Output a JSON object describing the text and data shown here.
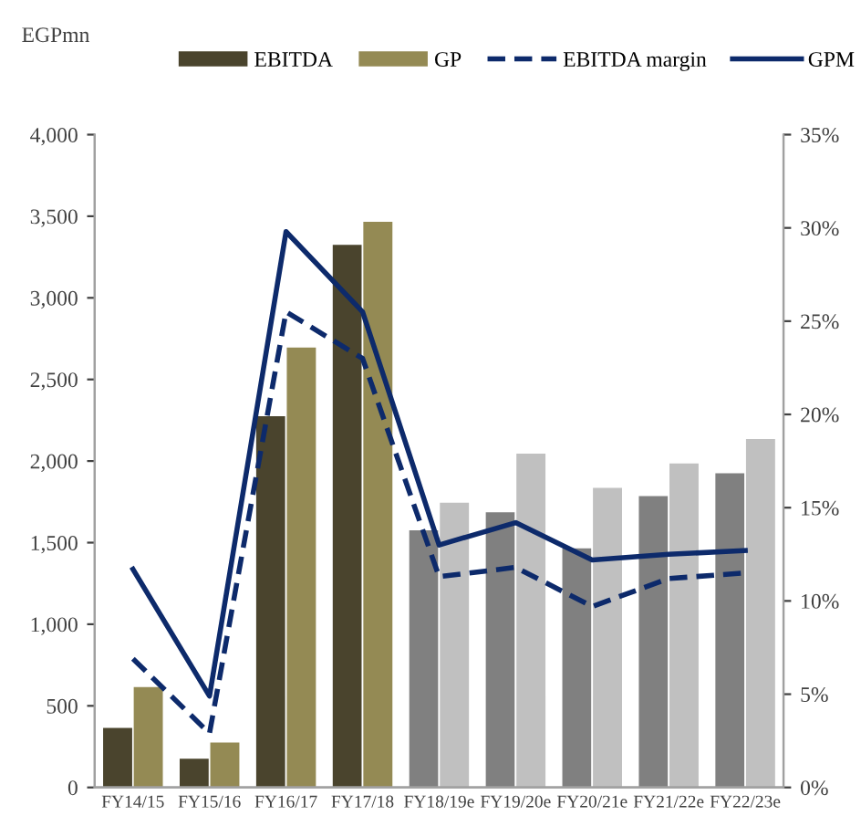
{
  "chart_data": {
    "type": "bar",
    "ylabel": "EGPmn",
    "categories": [
      "FY14/15",
      "FY15/16",
      "FY16/17",
      "FY17/18",
      "FY18/19e",
      "FY19/20e",
      "FY20/21e",
      "FY21/22e",
      "FY22/23e"
    ],
    "series": [
      {
        "name": "EBITDA",
        "color": "#4a442d",
        "colors": [
          "#4a442d",
          "#4a442d",
          "#4a442d",
          "#4a442d",
          "#808080",
          "#808080",
          "#808080",
          "#808080",
          "#808080"
        ],
        "values": [
          370,
          180,
          2280,
          3330,
          1580,
          1690,
          1470,
          1790,
          1930
        ]
      },
      {
        "name": "GP",
        "color": "#948a54",
        "colors": [
          "#948a54",
          "#948a54",
          "#948a54",
          "#948a54",
          "#c0c0c0",
          "#c0c0c0",
          "#c0c0c0",
          "#c0c0c0",
          "#c0c0c0"
        ],
        "values": [
          620,
          280,
          2700,
          3470,
          1750,
          2050,
          1840,
          1990,
          2140
        ]
      },
      {
        "name": "EBITDA margin",
        "type": "line",
        "axis": "y2",
        "line_style": "dashed",
        "color": "#0d2a6b",
        "values": [
          6.9,
          2.9,
          25.5,
          23.0,
          11.3,
          11.8,
          9.7,
          11.2,
          11.5
        ]
      },
      {
        "name": "GPM",
        "type": "line",
        "axis": "y2",
        "line_style": "solid",
        "color": "#0d2a6b",
        "values": [
          11.7,
          4.9,
          29.8,
          25.5,
          13.0,
          14.2,
          12.2,
          12.5,
          12.7
        ]
      }
    ],
    "ylim": [
      0,
      4000
    ],
    "yticks": [
      {
        "value": 0,
        "label": "0"
      },
      {
        "value": 500,
        "label": "500"
      },
      {
        "value": 1000,
        "label": "1,000"
      },
      {
        "value": 1500,
        "label": "1,500"
      },
      {
        "value": 2000,
        "label": "2,000"
      },
      {
        "value": 2500,
        "label": "2,500"
      },
      {
        "value": 3000,
        "label": "3,000"
      },
      {
        "value": 3500,
        "label": "3,500"
      },
      {
        "value": 4000,
        "label": "4,000"
      }
    ],
    "y2lim": [
      0,
      35
    ],
    "y2ticks": [
      {
        "value": 0,
        "label": "0%"
      },
      {
        "value": 5,
        "label": "5%"
      },
      {
        "value": 10,
        "label": "10%"
      },
      {
        "value": 15,
        "label": "15%"
      },
      {
        "value": 20,
        "label": "20%"
      },
      {
        "value": 25,
        "label": "25%"
      },
      {
        "value": 30,
        "label": "30%"
      },
      {
        "value": 35,
        "label": "35%"
      }
    ],
    "legend": "top",
    "grid": false,
    "marker": "none"
  }
}
